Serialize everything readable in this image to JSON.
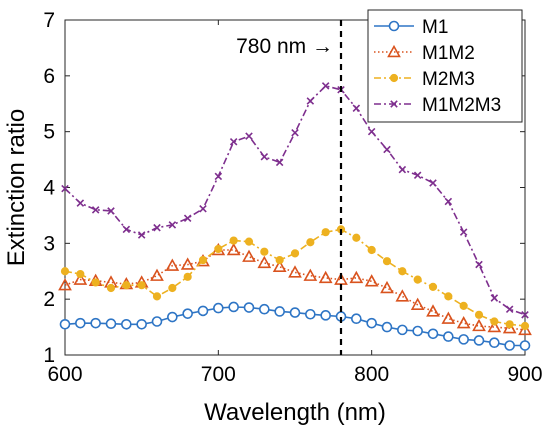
{
  "chart_data": {
    "type": "line",
    "title": "",
    "xlabel": "Wavelength (nm)",
    "ylabel": "Extinction ratio",
    "xlim": [
      600,
      900
    ],
    "ylim": [
      1,
      7
    ],
    "xticks": [
      600,
      700,
      800,
      900
    ],
    "yticks": [
      1,
      2,
      3,
      4,
      5,
      6,
      7
    ],
    "grid": false,
    "legend_position": "top-right",
    "x": [
      600,
      610,
      620,
      630,
      640,
      650,
      660,
      670,
      680,
      690,
      700,
      710,
      720,
      730,
      740,
      750,
      760,
      770,
      780,
      790,
      800,
      810,
      820,
      830,
      840,
      850,
      860,
      870,
      880,
      890,
      900
    ],
    "series": [
      {
        "name": "M1",
        "color": "#2E75C5",
        "marker": "circle",
        "line_style": "solid",
        "values": [
          1.55,
          1.57,
          1.57,
          1.56,
          1.55,
          1.55,
          1.6,
          1.68,
          1.74,
          1.79,
          1.84,
          1.86,
          1.85,
          1.82,
          1.78,
          1.76,
          1.73,
          1.71,
          1.69,
          1.65,
          1.57,
          1.5,
          1.45,
          1.43,
          1.38,
          1.33,
          1.28,
          1.26,
          1.22,
          1.17,
          1.17
        ]
      },
      {
        "name": "M1M2",
        "color": "#D9531E",
        "marker": "triangle",
        "line_style": "dotted",
        "values": [
          2.25,
          2.35,
          2.33,
          2.3,
          2.27,
          2.3,
          2.42,
          2.6,
          2.62,
          2.68,
          2.88,
          2.88,
          2.76,
          2.65,
          2.58,
          2.48,
          2.42,
          2.38,
          2.35,
          2.38,
          2.32,
          2.2,
          2.05,
          1.9,
          1.78,
          1.65,
          1.57,
          1.52,
          1.5,
          1.48,
          1.45
        ]
      },
      {
        "name": "M2M3",
        "color": "#EDB120",
        "marker": "dot",
        "line_style": "dashdot",
        "values": [
          2.5,
          2.45,
          2.3,
          2.2,
          2.25,
          2.25,
          2.05,
          2.2,
          2.4,
          2.7,
          2.9,
          3.05,
          3.03,
          2.85,
          2.7,
          2.82,
          3.02,
          3.2,
          3.25,
          3.1,
          2.88,
          2.68,
          2.5,
          2.35,
          2.22,
          2.05,
          1.88,
          1.72,
          1.6,
          1.55,
          1.52
        ]
      },
      {
        "name": "M1M2M3",
        "color": "#7E2F8E",
        "marker": "x",
        "line_style": "dashdot",
        "values": [
          3.98,
          3.72,
          3.6,
          3.58,
          3.25,
          3.15,
          3.28,
          3.33,
          3.45,
          3.62,
          4.2,
          4.82,
          4.92,
          4.55,
          4.45,
          4.98,
          5.55,
          5.82,
          5.75,
          5.42,
          5.0,
          4.68,
          4.32,
          4.22,
          4.08,
          3.75,
          3.2,
          2.62,
          2.02,
          1.82,
          1.72
        ]
      }
    ],
    "annotations": [
      {
        "text": "780 nm →",
        "x": 780,
        "line_style": "dashed"
      }
    ]
  }
}
